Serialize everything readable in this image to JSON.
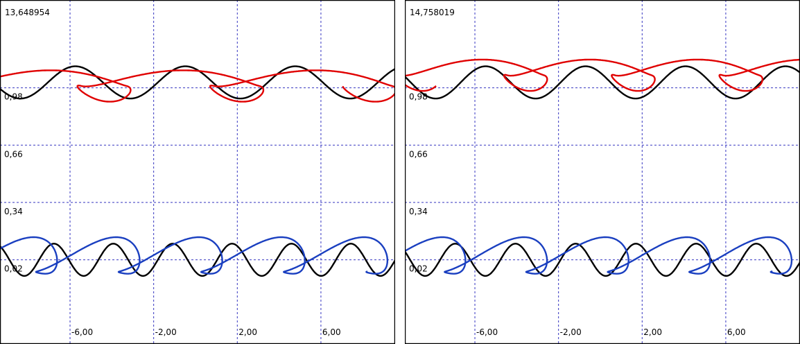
{
  "colors": {
    "grid": "#3434c0",
    "black_curve": "#000000",
    "red_curve": "#e00000",
    "blue_curve": "#1a3fc0",
    "frame": "#000000",
    "background": "#ffffff"
  },
  "chart_data": [
    {
      "type": "line",
      "title": "13,648954",
      "xlabel": "",
      "ylabel": "",
      "xlim": [
        -9.35,
        9.55
      ],
      "ylim": [
        -0.45,
        1.47
      ],
      "x_ticks": [
        -6,
        -2,
        2,
        6
      ],
      "x_tick_labels": [
        "-6,00",
        "-2,00",
        "2,00",
        "6,00"
      ],
      "y_ticks": [
        0.02,
        0.34,
        0.66,
        0.98
      ],
      "y_tick_labels": [
        "0,02",
        "0,34",
        "0,66",
        "0,98"
      ],
      "grid": true,
      "legend": "none",
      "series": [
        {
          "color": "#000000",
          "function": "sinusoid",
          "center": 1.01,
          "amplitude": 0.09,
          "period": 5.26,
          "phase": -1.8
        },
        {
          "color": "#000000",
          "function": "sinusoid",
          "center": 0.02,
          "amplitude": 0.09,
          "period": 2.84,
          "phase": -1.8
        },
        {
          "color": "#e00000",
          "function": "figure-eight loops",
          "center": 0.99,
          "amplitude": 0.1,
          "period": 6.35,
          "phase": -1.2
        },
        {
          "color": "#1a3fc0",
          "function": "sawtooth loops",
          "center": 0.02,
          "amplitude": 0.11,
          "period": 3.95,
          "phase": -1.2
        }
      ]
    },
    {
      "type": "line",
      "title": "14,758019",
      "xlabel": "",
      "ylabel": "",
      "xlim": [
        -9.35,
        9.55
      ],
      "ylim": [
        -0.45,
        1.47
      ],
      "x_ticks": [
        -6,
        -2,
        2,
        6
      ],
      "x_tick_labels": [
        "-6,00",
        "-2,00",
        "2,00",
        "6,00"
      ],
      "y_ticks": [
        0.02,
        0.34,
        0.66,
        0.98
      ],
      "y_tick_labels": [
        "0,02",
        "0,34",
        "0,66",
        "0,98"
      ],
      "grid": true,
      "legend": "none",
      "series": [
        {
          "color": "#000000",
          "function": "sinusoid",
          "center": 1.01,
          "amplitude": 0.09,
          "period": 4.78,
          "phase": -1.9
        },
        {
          "color": "#000000",
          "function": "sinusoid",
          "center": 0.02,
          "amplitude": 0.09,
          "period": 2.88,
          "phase": -1.9
        },
        {
          "color": "#e00000",
          "function": "figure-eight loops",
          "center": 1.05,
          "amplitude": 0.1,
          "period": 5.15,
          "phase": -1.0
        },
        {
          "color": "#1a3fc0",
          "function": "sawtooth loops",
          "center": 0.02,
          "amplitude": 0.11,
          "period": 3.9,
          "phase": -1.1
        }
      ]
    }
  ]
}
